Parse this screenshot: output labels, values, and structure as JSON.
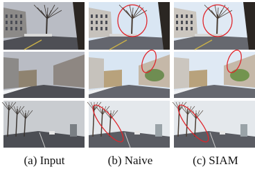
{
  "figure": {
    "captions": [
      "(a) Input",
      "(b) Naive",
      "(c) SIAM"
    ]
  }
}
